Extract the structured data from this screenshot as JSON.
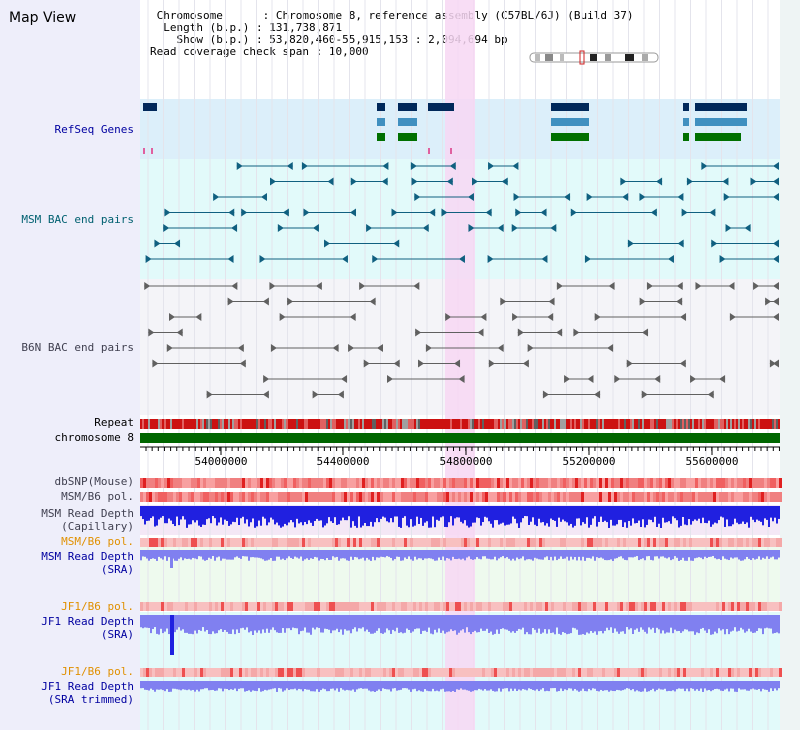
{
  "title": "Map View",
  "header": {
    "chromosome_label": "Chromosome",
    "chromosome_value": "Chromosome 8, reference assembly (C57BL/6J) (Build 37)",
    "length_label": "Length (b.p.)",
    "length_value": "131,738,871",
    "show_label": "Show (b.p.)",
    "show_value": "53,820,460-55,915,153 : 2,094,694 bp",
    "coverage_label": "Read coverage check span",
    "coverage_value": "10,000"
  },
  "tracks": {
    "refseq": "RefSeq Genes",
    "msm_bac": "MSM BAC end pairs",
    "b6n_bac": "B6N BAC end pairs",
    "repeat": "Repeat",
    "chromosome": "chromosome 8",
    "dbsnp": "dbSNP(Mouse)",
    "msm_b6_pol_1": "MSM/B6 pol.",
    "msm_read_depth_cap_1": "MSM Read Depth",
    "msm_read_depth_cap_2": "(Capillary)",
    "msm_b6_pol_2": "MSM/B6 pol.",
    "msm_read_depth_sra_1": "MSM Read Depth",
    "msm_read_depth_sra_2": "(SRA)",
    "jf1_b6_pol_1": "JF1/B6 pol.",
    "jf1_read_depth_sra_1": "JF1 Read Depth",
    "jf1_read_depth_sra_2": "(SRA)",
    "jf1_b6_pol_2": "JF1/B6 pol.",
    "jf1_read_depth_trim_1": "JF1 Read Depth",
    "jf1_read_depth_trim_2": "(SRA trimmed)"
  },
  "axis": {
    "ticks": [
      "54000000",
      "54400000",
      "54800000",
      "55200000",
      "55600000"
    ]
  },
  "colors": {
    "refseq_bg": "#dceffa",
    "msm_bg": "#e2fafa",
    "b6n_bg": "#f4f4f8",
    "highlight": "#f7d7f3",
    "repeat_red": "#cc1111",
    "chromosome_green": "#006600",
    "depth_blue": "#2020e0",
    "depth_light_blue": "#8080f0",
    "gene_navy": "#00285a",
    "gene_steel": "#4090c0",
    "gene_green": "#007000",
    "bac_teal": "#106080",
    "bac_gray": "#606060"
  }
}
